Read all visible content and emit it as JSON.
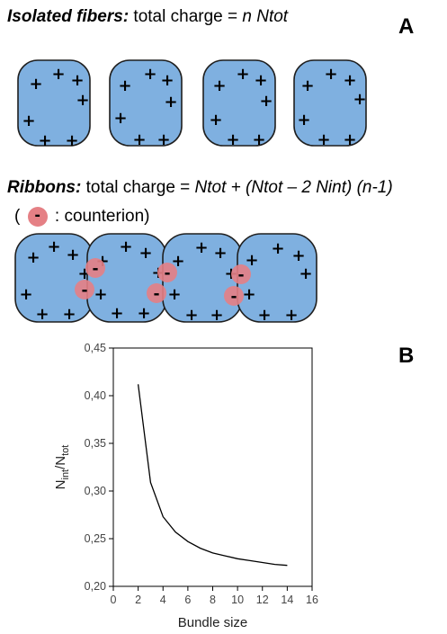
{
  "panel_a": {
    "label": "A",
    "isolated_title": "Isolated fibers:",
    "isolated_text": " total charge = ",
    "isolated_formula": "n Ntot",
    "ribbons_title": "Ribbons:",
    "ribbons_text": " total charge = ",
    "ribbons_formula": "Ntot + (Ntot – 2 Nint) (n-1)",
    "legend_open": "(",
    "legend_symbol": "-",
    "legend_text": ": counterion)",
    "plus_symbol": "+",
    "minus_symbol": "-",
    "fiber_color": "#7fb0e0",
    "counterion_color": "#e58085"
  },
  "panel_b": {
    "label": "B"
  },
  "chart_data": {
    "type": "line",
    "title": "",
    "xlabel": "Bundle size",
    "ylabel_main": "N",
    "ylabel_sub1": "int",
    "ylabel_slash": "/N",
    "ylabel_sub2": "tot",
    "xlim": [
      0,
      16
    ],
    "ylim": [
      0.2,
      0.45
    ],
    "xticks": [
      0,
      2,
      4,
      6,
      8,
      10,
      12,
      14,
      16
    ],
    "yticks": [
      0.2,
      0.25,
      0.3,
      0.35,
      0.4,
      0.45
    ],
    "xtick_labels": [
      "0",
      "2",
      "4",
      "6",
      "8",
      "10",
      "12",
      "14",
      "16"
    ],
    "ytick_labels": [
      "0,20",
      "0,25",
      "0,30",
      "0,35",
      "0,40",
      "0,45"
    ],
    "series": [
      {
        "x": [
          2,
          3,
          4,
          5,
          6,
          7,
          8,
          9,
          10,
          11,
          12,
          13,
          14
        ],
        "values": [
          0.412,
          0.309,
          0.273,
          0.257,
          0.247,
          0.24,
          0.235,
          0.232,
          0.229,
          0.227,
          0.225,
          0.223,
          0.222
        ]
      }
    ],
    "grid": false,
    "line_color": "#000000"
  }
}
